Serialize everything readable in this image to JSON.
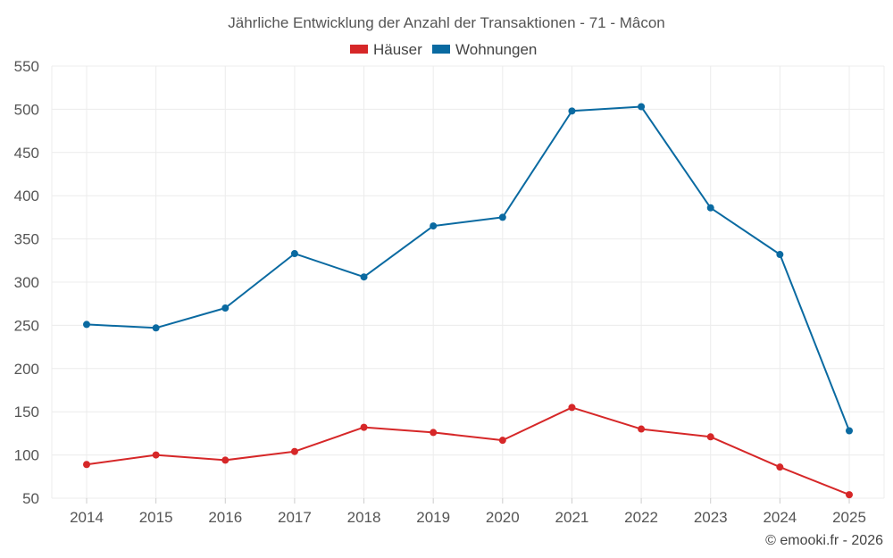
{
  "chart_data": {
    "type": "line",
    "title": "Jährliche Entwicklung der Anzahl der Transaktionen - 71 - Mâcon",
    "categories": [
      "2014",
      "2015",
      "2016",
      "2017",
      "2018",
      "2019",
      "2020",
      "2021",
      "2022",
      "2023",
      "2024",
      "2025"
    ],
    "series": [
      {
        "name": "Häuser",
        "color": "#d62728",
        "values": [
          89,
          100,
          94,
          104,
          132,
          126,
          117,
          155,
          130,
          121,
          86,
          54
        ]
      },
      {
        "name": "Wohnungen",
        "color": "#0a6aa1",
        "values": [
          251,
          247,
          270,
          333,
          306,
          365,
          375,
          498,
          503,
          386,
          332,
          128
        ]
      }
    ],
    "ylim": [
      50,
      550
    ],
    "yticks": [
      "50",
      "100",
      "150",
      "200",
      "250",
      "300",
      "350",
      "400",
      "450",
      "500",
      "550"
    ],
    "grid": true,
    "legend": "top-center",
    "xlabel": "",
    "ylabel": ""
  },
  "credit": "© emooki.fr - 2026"
}
